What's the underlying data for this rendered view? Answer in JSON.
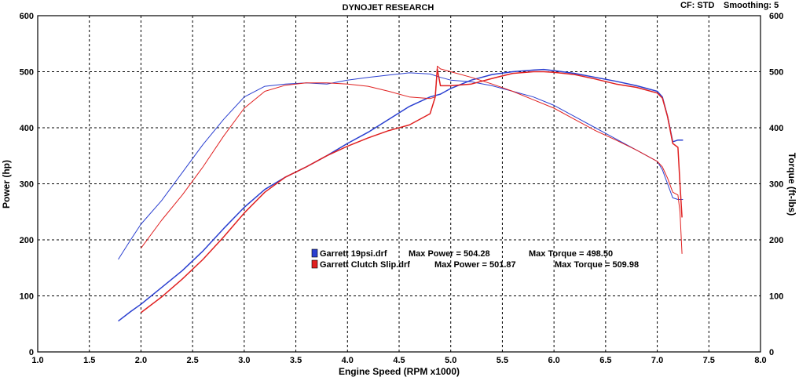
{
  "header": {
    "title": "DYNOJET RESEARCH",
    "cf": "CF: STD",
    "smoothing": "Smoothing: 5"
  },
  "chart_data": {
    "type": "line",
    "title": "DYNOJET RESEARCH",
    "xlabel": "Engine Speed (RPM x1000)",
    "ylabel_left": "Power (hp)",
    "ylabel_right": "Torque (ft-lbs)",
    "xlim": [
      1.0,
      8.0
    ],
    "ylim": [
      0,
      600
    ],
    "x_ticks": [
      "1.0",
      "1.5",
      "2.0",
      "2.5",
      "3.0",
      "3.5",
      "4.0",
      "4.5",
      "5.0",
      "5.5",
      "6.0",
      "6.5",
      "7.0",
      "7.5",
      "8.0"
    ],
    "y_ticks": [
      "0",
      "100",
      "200",
      "300",
      "400",
      "500",
      "600"
    ],
    "grid": true,
    "legend_position": "center",
    "colors": {
      "blue": "#2a3fd0",
      "red": "#e02020"
    },
    "series": [
      {
        "name": "Garrett 19psi.drf",
        "measure": "power",
        "color": "#2a3fd0",
        "x": [
          1.78,
          1.9,
          2.0,
          2.2,
          2.4,
          2.6,
          2.8,
          3.0,
          3.2,
          3.4,
          3.6,
          3.8,
          4.0,
          4.2,
          4.4,
          4.6,
          4.8,
          4.9,
          5.0,
          5.2,
          5.4,
          5.6,
          5.8,
          5.9,
          6.0,
          6.2,
          6.4,
          6.6,
          6.8,
          7.0,
          7.05,
          7.1,
          7.15,
          7.2,
          7.25
        ],
        "y": [
          55,
          72,
          85,
          115,
          145,
          180,
          220,
          258,
          290,
          312,
          330,
          350,
          372,
          392,
          415,
          438,
          455,
          460,
          470,
          485,
          495,
          500,
          503,
          504,
          502,
          497,
          490,
          483,
          475,
          465,
          455,
          420,
          375,
          378,
          378
        ]
      },
      {
        "name": "Garrett 19psi.drf",
        "measure": "torque",
        "color": "#2a3fd0",
        "x": [
          1.78,
          1.9,
          2.0,
          2.2,
          2.4,
          2.6,
          2.8,
          3.0,
          3.2,
          3.4,
          3.6,
          3.8,
          4.0,
          4.2,
          4.4,
          4.6,
          4.8,
          4.9,
          5.0,
          5.2,
          5.4,
          5.6,
          5.8,
          6.0,
          6.2,
          6.4,
          6.6,
          6.8,
          7.0,
          7.05,
          7.1,
          7.15,
          7.2,
          7.25
        ],
        "y": [
          165,
          200,
          228,
          270,
          320,
          370,
          415,
          455,
          474,
          478,
          480,
          478,
          485,
          490,
          494,
          498,
          496,
          490,
          485,
          482,
          475,
          465,
          455,
          440,
          420,
          400,
          380,
          360,
          340,
          325,
          300,
          275,
          272,
          272
        ]
      },
      {
        "name": "Garrett Clutch Slip.drf",
        "measure": "power",
        "color": "#e02020",
        "x": [
          2.0,
          2.2,
          2.4,
          2.6,
          2.8,
          3.0,
          3.2,
          3.4,
          3.6,
          3.8,
          4.0,
          4.2,
          4.4,
          4.6,
          4.8,
          4.85,
          4.87,
          4.9,
          5.0,
          5.2,
          5.4,
          5.6,
          5.8,
          5.9,
          6.0,
          6.2,
          6.4,
          6.6,
          6.8,
          7.0,
          7.05,
          7.1,
          7.15,
          7.2,
          7.22,
          7.24
        ],
        "y": [
          70,
          98,
          130,
          165,
          205,
          248,
          285,
          312,
          330,
          350,
          367,
          382,
          395,
          405,
          425,
          455,
          505,
          475,
          475,
          478,
          488,
          497,
          500,
          500,
          499,
          495,
          487,
          478,
          472,
          462,
          453,
          420,
          372,
          365,
          300,
          240
        ]
      },
      {
        "name": "Garrett Clutch Slip.drf",
        "measure": "torque",
        "color": "#e02020",
        "x": [
          2.0,
          2.2,
          2.4,
          2.6,
          2.8,
          3.0,
          3.2,
          3.4,
          3.6,
          3.8,
          4.0,
          4.2,
          4.4,
          4.6,
          4.8,
          4.85,
          4.87,
          4.9,
          5.0,
          5.2,
          5.4,
          5.6,
          5.8,
          6.0,
          6.2,
          6.4,
          6.6,
          6.8,
          7.0,
          7.05,
          7.1,
          7.15,
          7.2,
          7.22,
          7.24
        ],
        "y": [
          185,
          235,
          280,
          330,
          385,
          435,
          465,
          476,
          480,
          480,
          478,
          474,
          465,
          455,
          452,
          455,
          510,
          505,
          500,
          490,
          478,
          465,
          450,
          435,
          415,
          395,
          378,
          360,
          340,
          330,
          310,
          285,
          280,
          250,
          175
        ]
      }
    ],
    "legend": [
      {
        "color": "#2a3fd0",
        "file": "Garrett 19psi.drf",
        "max_power_label": "Max Power = 504.28",
        "max_torque_label": "Max Torque = 498.50"
      },
      {
        "color": "#e02020",
        "file": "Garrett Clutch Slip.drf",
        "max_power_label": "Max Power = 501.87",
        "max_torque_label": "Max Torque = 509.98"
      }
    ]
  }
}
